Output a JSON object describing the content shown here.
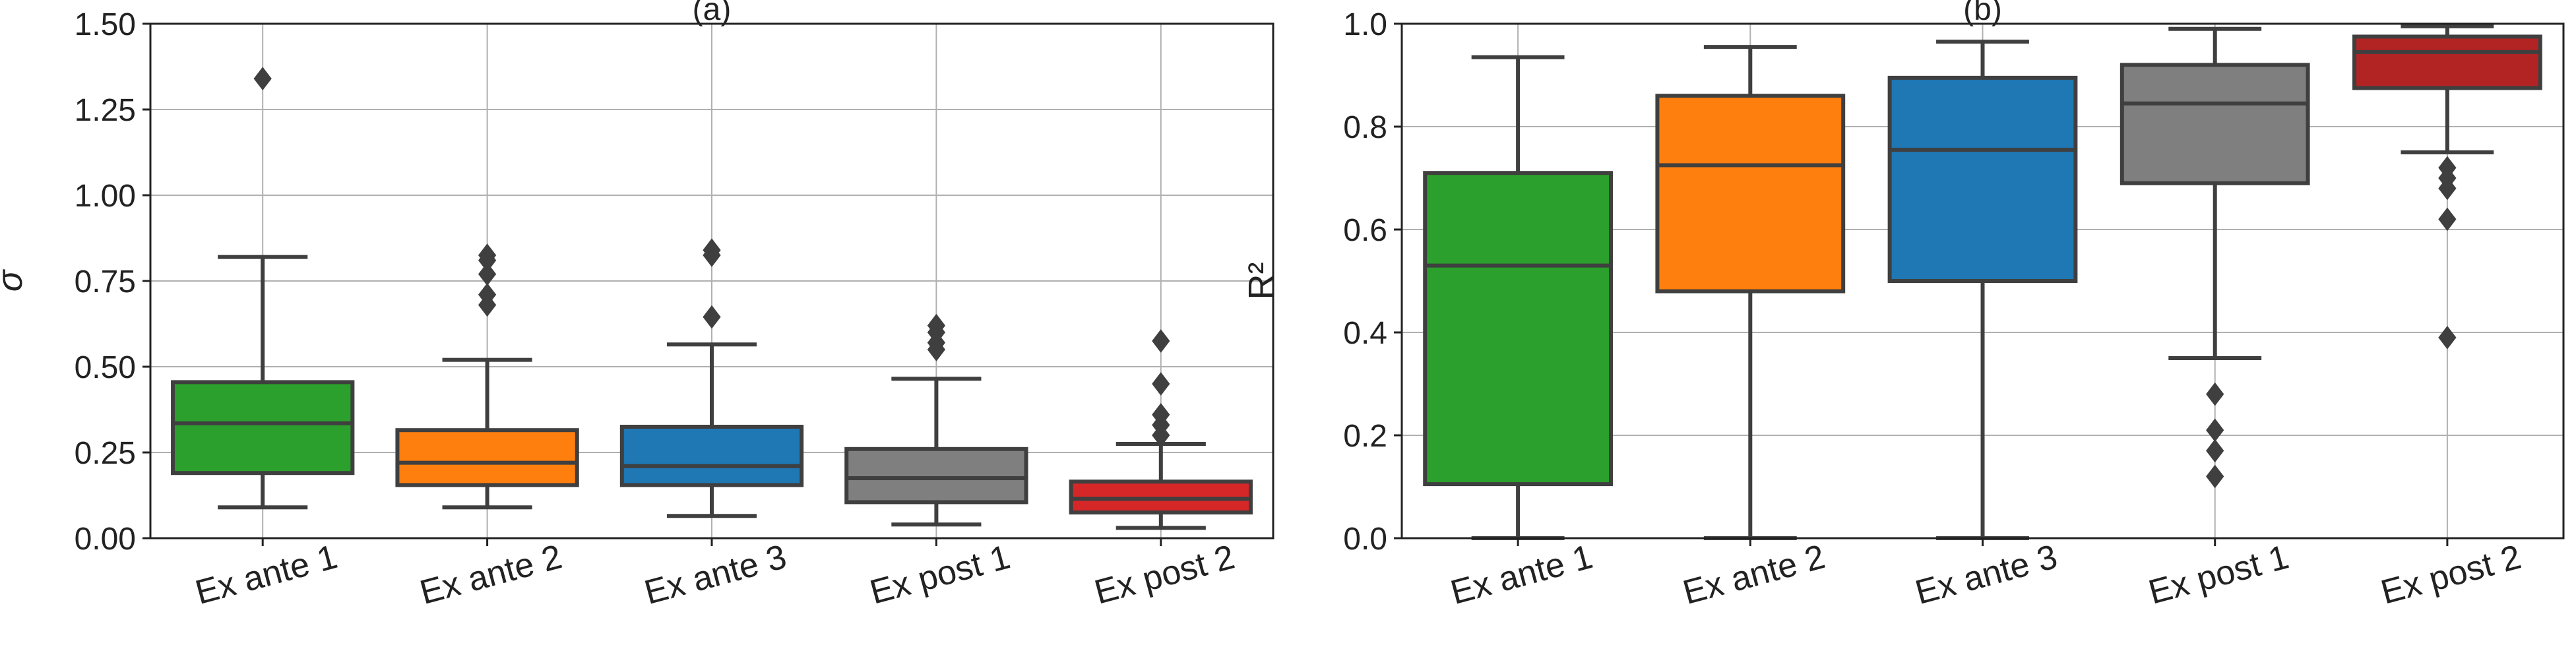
{
  "chart_data": [
    {
      "type": "box",
      "title": "(a)",
      "xlabel": "",
      "ylabel": "σ",
      "ylim": [
        0,
        1.5
      ],
      "yticks": [
        "0.00",
        "0.25",
        "0.50",
        "0.75",
        "1.00",
        "1.25",
        "1.50"
      ],
      "grid": true,
      "categories": [
        "Ex ante 1",
        "Ex ante 2",
        "Ex ante 3",
        "Ex post 1",
        "Ex post 2"
      ],
      "boxes": [
        {
          "name": "Ex ante 1",
          "color": "#2ca02c",
          "whisker_low": 0.09,
          "q1": 0.19,
          "median": 0.335,
          "q3": 0.455,
          "whisker_high": 0.82,
          "outliers": [
            1.34
          ]
        },
        {
          "name": "Ex ante 2",
          "color": "#ff7f0e",
          "whisker_low": 0.09,
          "q1": 0.155,
          "median": 0.22,
          "q3": 0.315,
          "whisker_high": 0.52,
          "outliers": [
            0.68,
            0.71,
            0.77,
            0.81,
            0.825
          ]
        },
        {
          "name": "Ex ante 3",
          "color": "#1f77b4",
          "whisker_low": 0.065,
          "q1": 0.155,
          "median": 0.21,
          "q3": 0.325,
          "whisker_high": 0.565,
          "outliers": [
            0.645,
            0.825,
            0.84
          ]
        },
        {
          "name": "Ex post 1",
          "color": "#7f7f7f",
          "whisker_low": 0.04,
          "q1": 0.105,
          "median": 0.175,
          "q3": 0.26,
          "whisker_high": 0.465,
          "outliers": [
            0.55,
            0.57,
            0.6,
            0.62
          ]
        },
        {
          "name": "Ex post 2",
          "color": "#d62728",
          "whisker_low": 0.03,
          "q1": 0.075,
          "median": 0.115,
          "q3": 0.165,
          "whisker_high": 0.275,
          "outliers": [
            0.3,
            0.33,
            0.36,
            0.45,
            0.575
          ]
        }
      ]
    },
    {
      "type": "box",
      "title": "(b)",
      "xlabel": "",
      "ylabel": "R²",
      "ylim": [
        0,
        1.0
      ],
      "yticks": [
        "0.0",
        "0.2",
        "0.4",
        "0.6",
        "0.8",
        "1.0"
      ],
      "grid": true,
      "categories": [
        "Ex ante 1",
        "Ex ante 2",
        "Ex ante 3",
        "Ex post 1",
        "Ex post 2"
      ],
      "boxes": [
        {
          "name": "Ex ante 1",
          "color": "#2ca02c",
          "whisker_low": 0.0,
          "q1": 0.105,
          "median": 0.53,
          "q3": 0.71,
          "whisker_high": 0.935,
          "outliers": []
        },
        {
          "name": "Ex ante 2",
          "color": "#ff7f0e",
          "whisker_low": 0.0,
          "q1": 0.48,
          "median": 0.725,
          "q3": 0.86,
          "whisker_high": 0.955,
          "outliers": []
        },
        {
          "name": "Ex ante 3",
          "color": "#1f77b4",
          "whisker_low": 0.0,
          "q1": 0.5,
          "median": 0.755,
          "q3": 0.895,
          "whisker_high": 0.965,
          "outliers": []
        },
        {
          "name": "Ex post 1",
          "color": "#7f7f7f",
          "whisker_low": 0.35,
          "q1": 0.69,
          "median": 0.845,
          "q3": 0.92,
          "whisker_high": 0.99,
          "outliers": [
            0.12,
            0.17,
            0.21,
            0.28
          ]
        },
        {
          "name": "Ex post 2",
          "color": "#b22424",
          "whisker_low": 0.75,
          "q1": 0.875,
          "median": 0.945,
          "q3": 0.975,
          "whisker_high": 0.995,
          "outliers": [
            0.39,
            0.62,
            0.68,
            0.7,
            0.72
          ]
        }
      ]
    }
  ]
}
